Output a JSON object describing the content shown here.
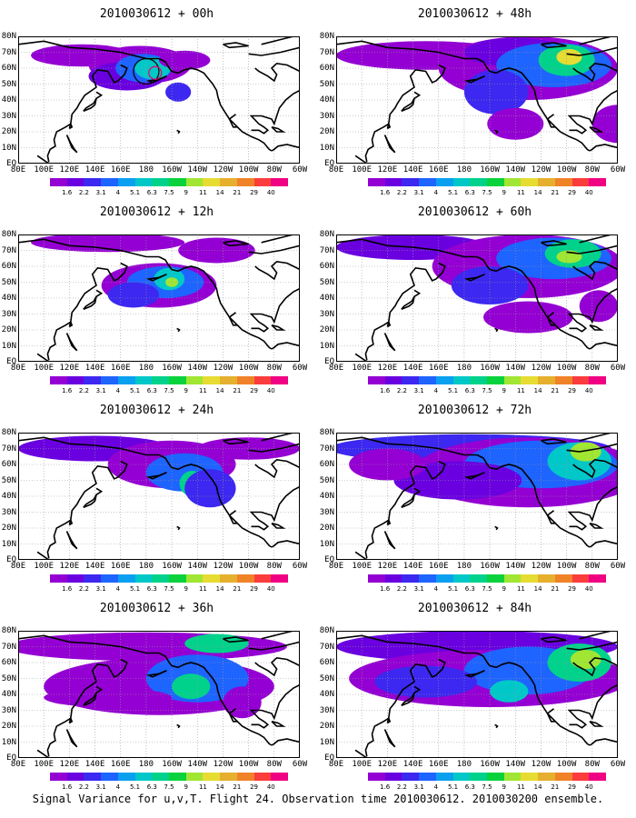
{
  "chart_data": {
    "type": "heatmap",
    "colorbar": {
      "levels": [
        "1.6",
        "2.2",
        "3.1",
        "4",
        "5.1",
        "6.3",
        "7.5",
        "9",
        "11",
        "14",
        "21",
        "29",
        "40"
      ],
      "colors": [
        "#9400d3",
        "#6a00e0",
        "#3c28f0",
        "#1e64ff",
        "#0aa0f0",
        "#00c8c8",
        "#00d28c",
        "#0ad23c",
        "#a0e632",
        "#e6dc32",
        "#e6af2d",
        "#f08228",
        "#fa3c3c",
        "#f00082"
      ]
    },
    "x_ticks": [
      "80E",
      "100E",
      "120E",
      "140E",
      "160E",
      "180",
      "160W",
      "140W",
      "120W",
      "100W",
      "80W",
      "60W"
    ],
    "y_ticks": [
      "80N",
      "70N",
      "60N",
      "50N",
      "40N",
      "30N",
      "20N",
      "10N",
      "EQ"
    ],
    "panels": [
      {
        "title": "2010030612 + 00h"
      },
      {
        "title": "2010030612 + 48h"
      },
      {
        "title": "2010030612 + 12h"
      },
      {
        "title": "2010030612 + 60h"
      },
      {
        "title": "2010030612 + 24h"
      },
      {
        "title": "2010030612 + 72h"
      },
      {
        "title": "2010030612 + 36h"
      },
      {
        "title": "2010030612 + 84h"
      }
    ]
  },
  "footer": "Signal Variance for u,v,T. Flight 24. Observation time 2010030612. 2010030200 ensemble."
}
